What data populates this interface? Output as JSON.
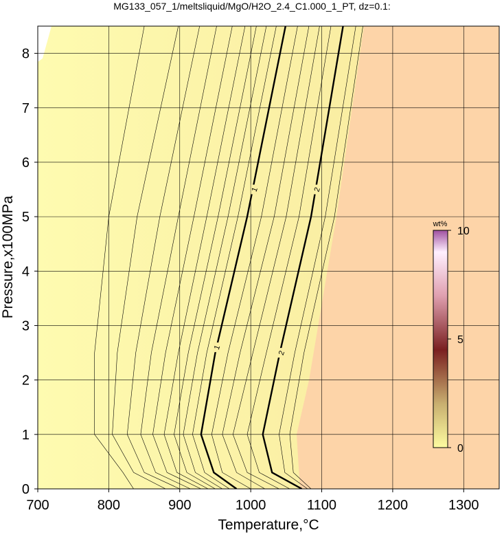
{
  "chart_data": {
    "type": "contour",
    "title": "MG133_057_1/meltsliquid/MgO/H2O_2.4_C1.000_1_PT, dz=0.1:",
    "x_label": "Temperature,°C",
    "y_label": "Pressure,x100MPa",
    "xlim": [
      700,
      1350
    ],
    "xticks": [
      700,
      800,
      900,
      1000,
      1100,
      1200,
      1300
    ],
    "ylim": [
      0,
      8.5
    ],
    "yticks": [
      0,
      1,
      2,
      3,
      4,
      5,
      6,
      7,
      8
    ],
    "grid": true,
    "contours": [
      {
        "level": 0.1,
        "bold": false,
        "x": [
          835,
          820,
          780,
          780,
          800,
          850
        ],
        "y": [
          0,
          0.3,
          1,
          2.5,
          5,
          8.5
        ]
      },
      {
        "level": 0.2,
        "bold": false,
        "x": [
          880,
          835,
          805,
          812,
          840,
          898
        ],
        "y": [
          0,
          0.3,
          1,
          2.5,
          5,
          8.5
        ]
      },
      {
        "level": 0.3,
        "bold": false,
        "x": [
          900,
          850,
          826,
          838,
          872,
          928
        ],
        "y": [
          0,
          0.3,
          1,
          2.5,
          5,
          8.5
        ]
      },
      {
        "level": 0.4,
        "bold": false,
        "x": [
          915,
          866,
          845,
          860,
          898,
          952
        ],
        "y": [
          0,
          0.3,
          1,
          2.5,
          5,
          8.5
        ]
      },
      {
        "level": 0.5,
        "bold": false,
        "x": [
          930,
          882,
          862,
          880,
          920,
          974
        ],
        "y": [
          0,
          0.3,
          1,
          2.5,
          5,
          8.5
        ]
      },
      {
        "level": 0.6,
        "bold": false,
        "x": [
          940,
          896,
          878,
          898,
          938,
          992
        ],
        "y": [
          0,
          0.3,
          1,
          2.5,
          5,
          8.5
        ]
      },
      {
        "level": 0.7,
        "bold": false,
        "x": [
          950,
          910,
          892,
          912,
          954,
          1008
        ],
        "y": [
          0,
          0.3,
          1,
          2.5,
          5,
          8.5
        ]
      },
      {
        "level": 0.8,
        "bold": false,
        "x": [
          960,
          922,
          905,
          925,
          968,
          1022
        ],
        "y": [
          0,
          0.3,
          1,
          2.5,
          5,
          8.5
        ]
      },
      {
        "level": 0.9,
        "bold": false,
        "x": [
          970,
          935,
          918,
          938,
          982,
          1036
        ],
        "y": [
          0,
          0.3,
          1,
          2.5,
          5,
          8.5
        ]
      },
      {
        "level": 1,
        "bold": true,
        "x": [
          980,
          948,
          930,
          950,
          995,
          1049
        ],
        "y": [
          0,
          0.3,
          1,
          2.5,
          5,
          8.5
        ]
      },
      {
        "level": 1.2,
        "bold": false,
        "x": [
          1000,
          960,
          945,
          968,
          1015,
          1066
        ],
        "y": [
          0,
          0.3,
          1,
          2.5,
          5,
          8.5
        ]
      },
      {
        "level": 1.4,
        "bold": false,
        "x": [
          1020,
          980,
          960,
          985,
          1033,
          1082
        ],
        "y": [
          0,
          0.3,
          1,
          2.5,
          5,
          8.5
        ]
      },
      {
        "level": 1.6,
        "bold": false,
        "x": [
          1040,
          995,
          975,
          1003,
          1050,
          1097
        ],
        "y": [
          0,
          0.3,
          1,
          2.5,
          5,
          8.5
        ]
      },
      {
        "level": 1.8,
        "bold": false,
        "x": [
          1055,
          1012,
          995,
          1022,
          1068,
          1113
        ],
        "y": [
          0,
          0.3,
          1,
          2.5,
          5,
          8.5
        ]
      },
      {
        "level": 2,
        "bold": true,
        "x": [
          1072,
          1030,
          1017,
          1041,
          1085,
          1130
        ],
        "y": [
          0,
          0.3,
          1,
          2.5,
          5,
          8.5
        ]
      },
      {
        "level": 2.5,
        "bold": false,
        "x": [
          1080,
          1048,
          1040,
          1062,
          1105,
          1148
        ],
        "y": [
          0,
          0.3,
          1,
          2.5,
          5,
          8.5
        ]
      },
      {
        "level": 3,
        "bold": false,
        "x": [
          1085,
          1060,
          1055,
          1075,
          1118,
          1158
        ],
        "y": [
          0,
          0.3,
          1,
          2.5,
          5,
          8.5
        ]
      }
    ],
    "contour_labels": [
      {
        "value": 1,
        "x": 952,
        "y": 2.6
      },
      {
        "value": 1,
        "x": 1005,
        "y": 5.5
      },
      {
        "value": 2,
        "x": 1043,
        "y": 2.5
      },
      {
        "value": 2,
        "x": 1093,
        "y": 5.5
      }
    ],
    "colorbar": {
      "label": "wt%",
      "lim": [
        0,
        10
      ],
      "ticks": [
        0,
        5,
        10
      ]
    }
  }
}
